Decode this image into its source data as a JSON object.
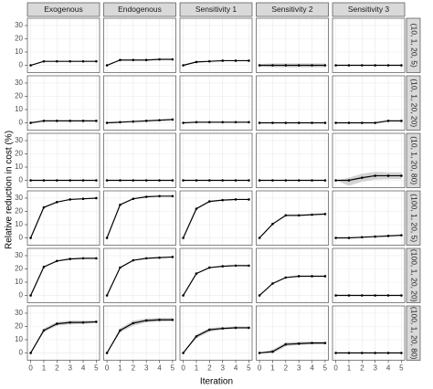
{
  "chart_data": {
    "type": "line",
    "y_label": "Relative reduction in cost (%)",
    "x_label": "Iteration",
    "columns": [
      "Exogenous",
      "Endogenous",
      "Sensitivity 1",
      "Sensitivity 2",
      "Sensitivity 3"
    ],
    "rows": [
      "(10, 1, 20, 5)",
      "(10, 1, 20, 20)",
      "(10, 1, 20, 80)",
      "(100, 1, 20, 5)",
      "(100, 1, 20, 20)",
      "(100, 1, 20, 80)"
    ],
    "x": [
      0,
      1,
      2,
      3,
      4,
      5
    ],
    "xlim": [
      -0.25,
      5.25
    ],
    "xticks": [
      0,
      1,
      2,
      3,
      4,
      5
    ],
    "ylim": [
      -5.5,
      35.5
    ],
    "yticks": [
      0,
      10,
      20,
      30
    ],
    "grid": true,
    "color": "#000000",
    "band_color": "#c8c8c8",
    "panels": [
      [
        {
          "values": [
            0,
            3,
            3,
            3,
            3,
            3
          ]
        },
        {
          "values": [
            0,
            4,
            4,
            4,
            4.5,
            4.5
          ]
        },
        {
          "values": [
            0,
            2.5,
            3,
            3.5,
            3.5,
            3.5
          ]
        },
        {
          "values": [
            0,
            0,
            0,
            0,
            0,
            0
          ],
          "lower": [
            -1,
            -1.5,
            -1.5,
            -1.5,
            -1.5,
            -1.5
          ],
          "upper": [
            1,
            1.5,
            1.5,
            1.5,
            1.5,
            1.5
          ]
        },
        {
          "values": [
            0,
            0,
            0,
            0,
            0,
            0
          ]
        }
      ],
      [
        {
          "values": [
            0,
            1.5,
            1.5,
            1.5,
            1.5,
            1.5
          ]
        },
        {
          "values": [
            0,
            0.5,
            1,
            1.5,
            2,
            2.5
          ]
        },
        {
          "values": [
            0,
            0.5,
            0.5,
            0.5,
            0.5,
            0.5
          ]
        },
        {
          "values": [
            0,
            0,
            0,
            0,
            0,
            0
          ]
        },
        {
          "values": [
            0,
            0,
            0,
            0,
            1.5,
            1.5
          ]
        }
      ],
      [
        {
          "values": [
            0,
            0,
            0,
            0,
            0,
            0
          ]
        },
        {
          "values": [
            0,
            0,
            0,
            0,
            0,
            0
          ]
        },
        {
          "values": [
            0,
            0,
            0,
            0,
            0,
            0
          ]
        },
        {
          "values": [
            0,
            0,
            0,
            0,
            0,
            0
          ]
        },
        {
          "values": [
            0,
            0,
            2,
            3.5,
            3.5,
            3.5
          ],
          "lower": [
            0,
            -4,
            -1,
            0.5,
            1,
            1
          ],
          "upper": [
            0,
            2,
            5,
            6.5,
            6,
            6
          ]
        }
      ],
      [
        {
          "values": [
            0,
            23,
            27,
            29,
            29.5,
            30
          ]
        },
        {
          "values": [
            0,
            25,
            29.5,
            31,
            31.5,
            31.5
          ]
        },
        {
          "values": [
            0,
            22,
            27.5,
            28.5,
            29,
            29
          ]
        },
        {
          "values": [
            0,
            10.5,
            17,
            17,
            17.5,
            18
          ]
        },
        {
          "values": [
            0,
            0,
            0.5,
            1,
            1.5,
            2
          ]
        }
      ],
      [
        {
          "values": [
            0,
            21.5,
            26,
            27.5,
            28,
            28
          ]
        },
        {
          "values": [
            0,
            21,
            26.5,
            28,
            28.5,
            29
          ]
        },
        {
          "values": [
            0,
            16.5,
            21,
            22,
            22.5,
            22.5
          ]
        },
        {
          "values": [
            0,
            9,
            13.5,
            14.5,
            14.5,
            14.5
          ]
        },
        {
          "values": [
            0,
            0,
            0,
            0,
            0,
            0
          ]
        }
      ],
      [
        {
          "values": [
            0,
            17,
            22,
            23,
            23,
            23.5
          ],
          "lower": [
            0,
            15.5,
            20.5,
            21.5,
            22,
            22.5
          ],
          "upper": [
            0,
            18.5,
            23.5,
            24.5,
            24.5,
            24.5
          ]
        },
        {
          "values": [
            0,
            17,
            22.5,
            24.5,
            25,
            25
          ],
          "lower": [
            0,
            15.5,
            20.5,
            23,
            23.5,
            24
          ],
          "upper": [
            0,
            18.5,
            24.5,
            26,
            26.5,
            26.5
          ]
        },
        {
          "values": [
            0,
            12.5,
            17.5,
            18.5,
            19,
            19
          ],
          "lower": [
            0,
            11,
            16,
            17.5,
            18,
            18
          ],
          "upper": [
            0,
            14,
            19,
            19.5,
            20,
            20
          ]
        },
        {
          "values": [
            0,
            1,
            6.5,
            7,
            7.5,
            7.5
          ],
          "lower": [
            0,
            -0.5,
            5,
            6,
            6.5,
            6.5
          ],
          "upper": [
            0,
            2.5,
            8,
            8.5,
            8.5,
            8.5
          ]
        },
        {
          "values": [
            0,
            0,
            0,
            0,
            0,
            0
          ]
        }
      ]
    ]
  }
}
